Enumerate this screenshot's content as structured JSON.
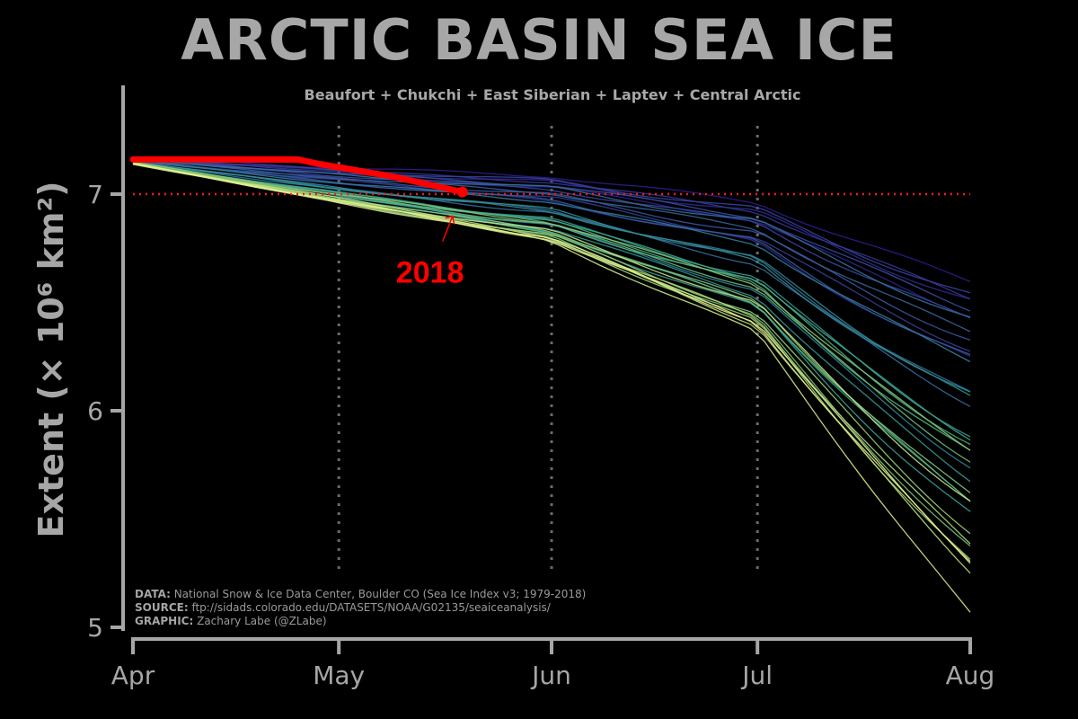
{
  "title": "ARCTIC BASIN SEA ICE",
  "subtitle": "Beaufort + Chukchi + East Siberian + Laptev + Central Arctic",
  "credits": [
    {
      "label": "DATA:",
      "text": " National Snow & Ice Data Center, Boulder CO (Sea Ice Index v3; 1979-2018)"
    },
    {
      "label": "SOURCE:",
      "text": " ftp://sidads.colorado.edu/DATASETS/NOAA/G02135/seaiceanalysis/"
    },
    {
      "label": "GRAPHIC:",
      "text": " Zachary Labe (@ZLabe)"
    }
  ],
  "chart_data": {
    "type": "line",
    "title": "ARCTIC BASIN SEA ICE",
    "subtitle": "Beaufort + Chukchi + East Siberian + Laptev + Central Arctic",
    "ylabel": "Extent (× 10⁶ km²)",
    "y_ticks": [
      5,
      6,
      7
    ],
    "ylim": [
      5,
      7.5
    ],
    "x_ticks": [
      "Apr",
      "May",
      "Jun",
      "Jul",
      "Aug"
    ],
    "x_tick_days": [
      0,
      30,
      61,
      91,
      122
    ],
    "vertical_gridlines_days": [
      30,
      61,
      91
    ],
    "reference_line_value": 7.0,
    "reference_line_color": "#ff1a1a",
    "highlight": {
      "name": "2018",
      "color": "#ff0000",
      "days": [
        0,
        24,
        27,
        38,
        48
      ],
      "values": [
        7.16,
        7.16,
        7.14,
        7.08,
        7.01
      ]
    },
    "colormap": [
      "#2b1e8c",
      "#3b4c9e",
      "#2f7f9a",
      "#3aa58a",
      "#8fc972",
      "#e6f08e"
    ],
    "historical_years_count": 39,
    "historical_end_days": [
      0,
      61,
      91,
      122
    ],
    "historical_envelope": {
      "upper": [
        7.18,
        7.14,
        7.05,
        6.75
      ],
      "lower": [
        7.14,
        6.78,
        6.35,
        5.0
      ]
    }
  }
}
